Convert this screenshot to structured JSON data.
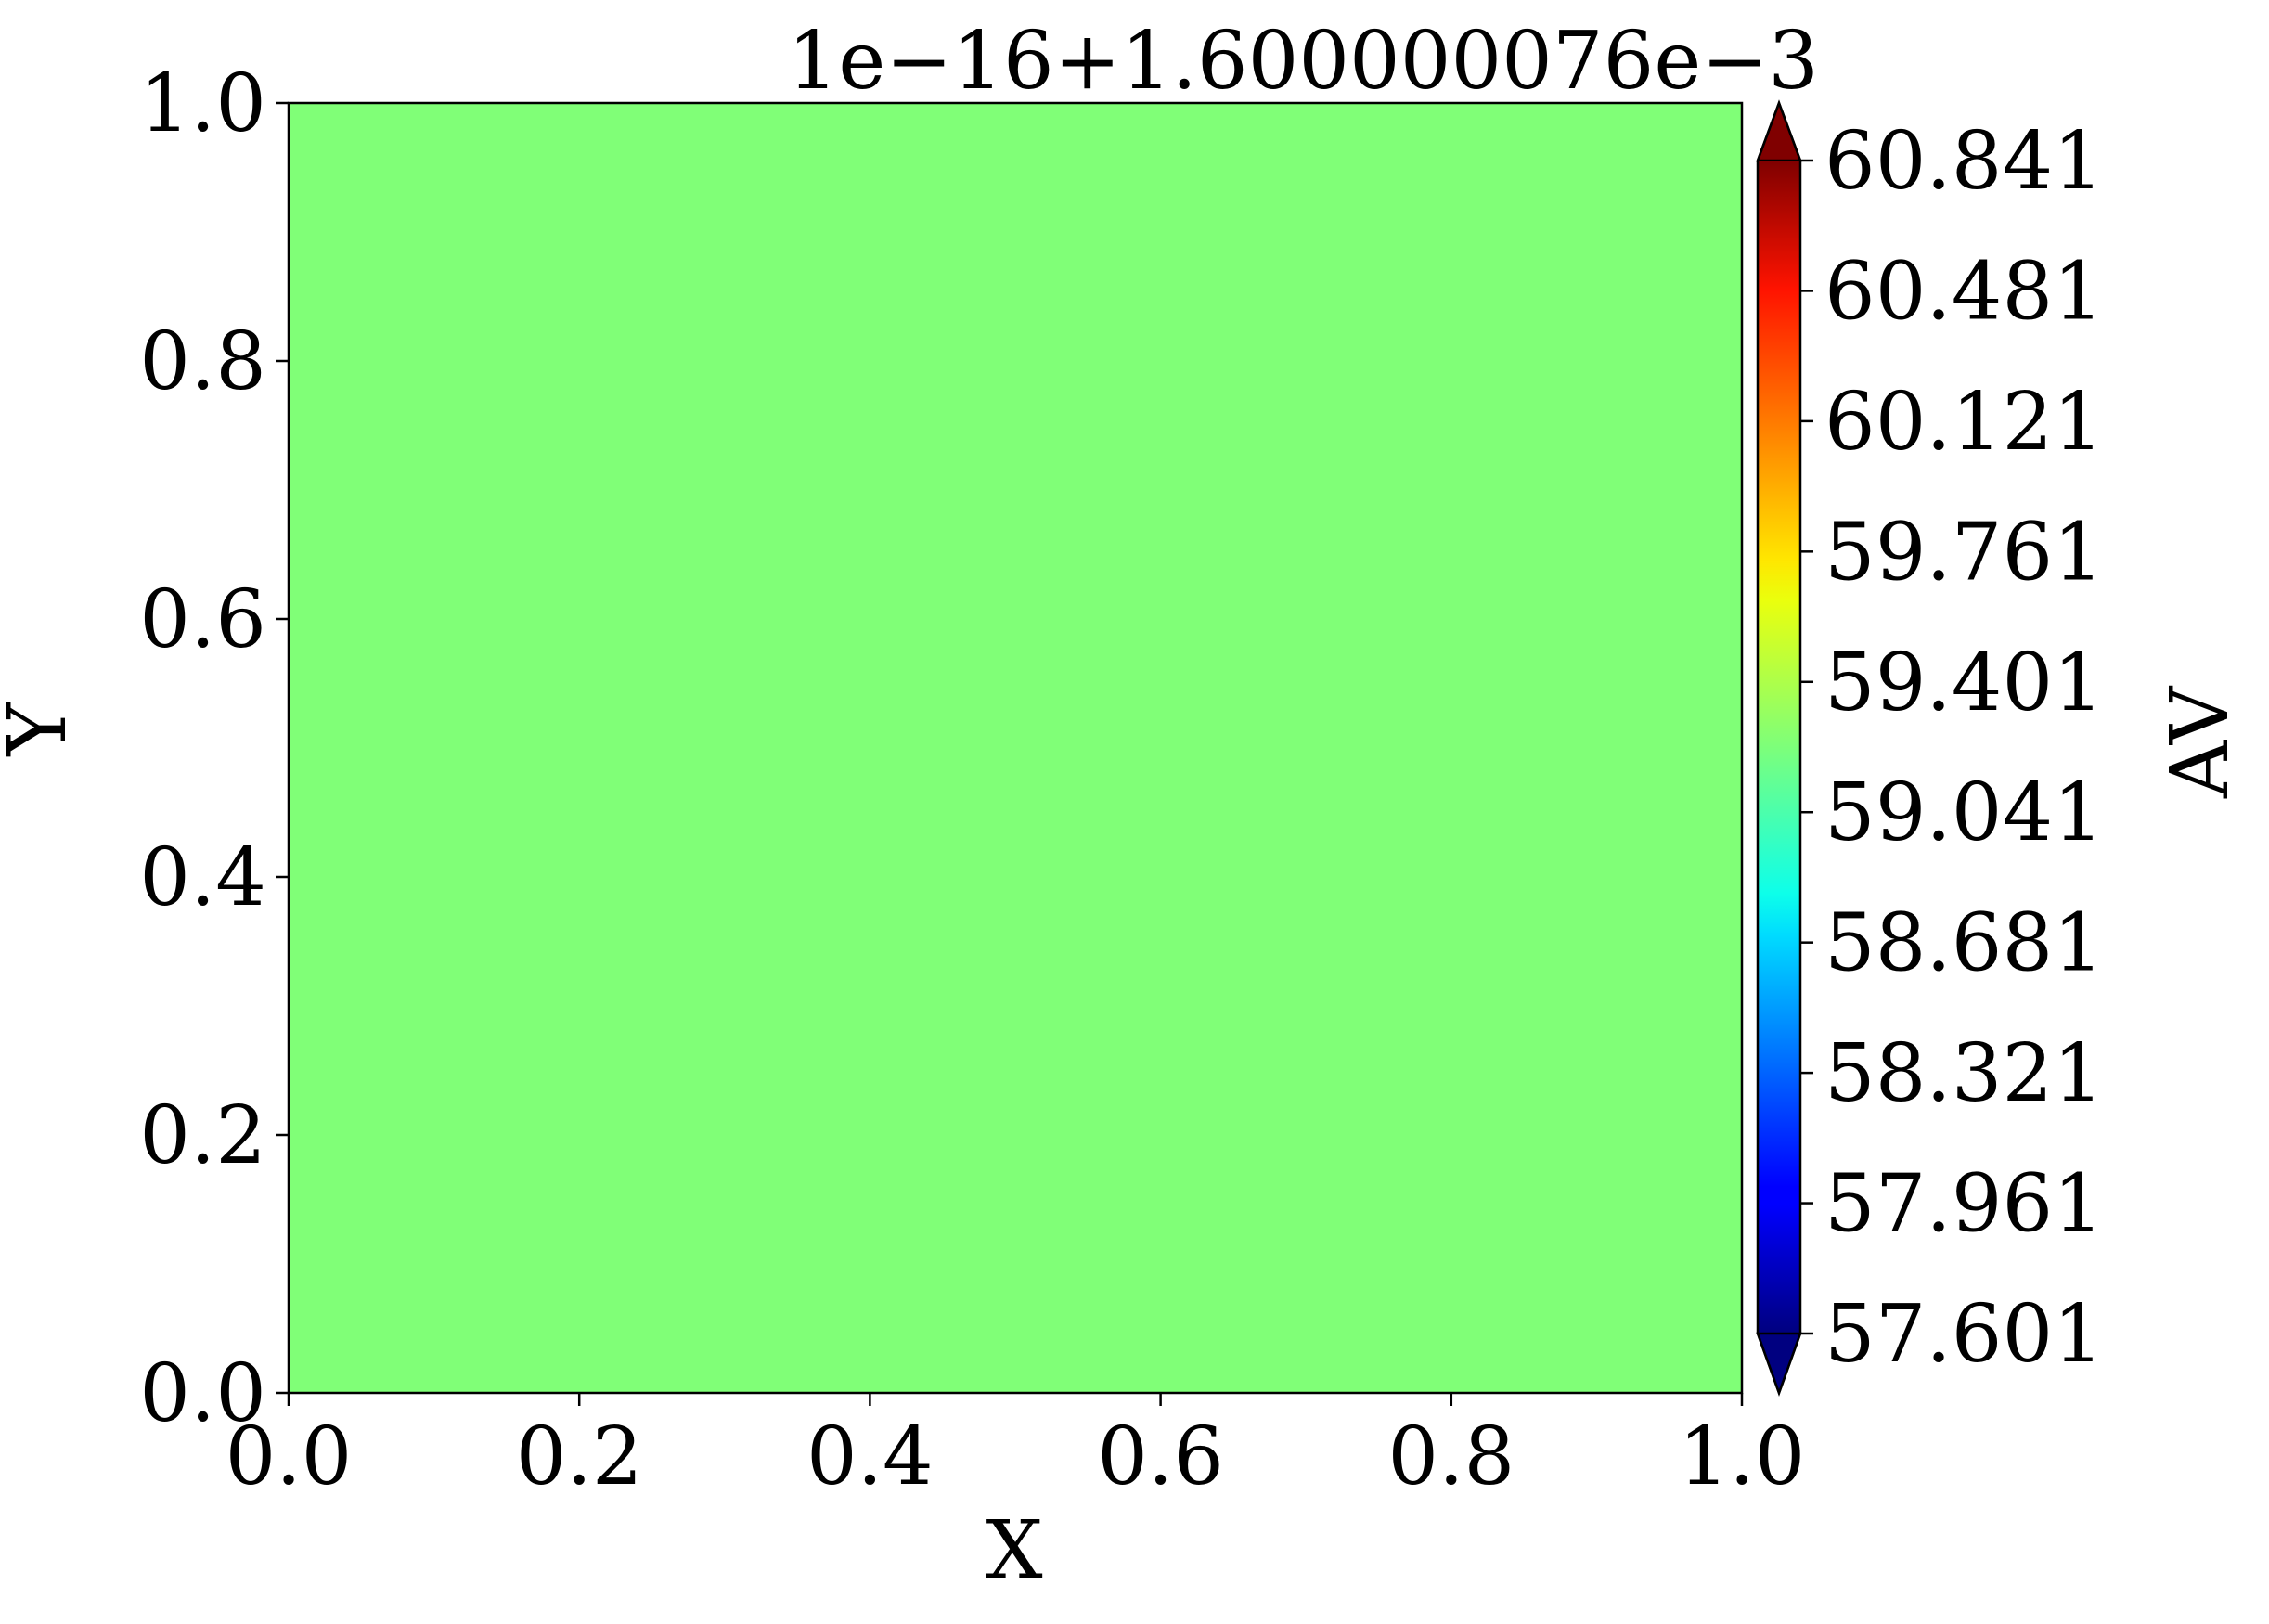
{
  "chart_data": {
    "type": "heatmap",
    "xlabel": "X",
    "ylabel": "Y",
    "xlim": [
      0.0,
      1.0
    ],
    "ylim": [
      0.0,
      1.0
    ],
    "xticks": [
      "0.0",
      "0.2",
      "0.4",
      "0.6",
      "0.8",
      "1.0"
    ],
    "yticks": [
      "0.0",
      "0.2",
      "0.4",
      "0.6",
      "0.8",
      "1.0"
    ],
    "offset_text": "1e−16+1.600000076e−3",
    "field_value": 59.221,
    "field_color": "#80ff77",
    "grid": false,
    "colorbar": {
      "label": "AV",
      "colormap": "jet",
      "extend": "both",
      "min": 57.601,
      "max": 60.841,
      "ticks": [
        "57.601",
        "57.961",
        "58.321",
        "58.681",
        "59.041",
        "59.401",
        "59.761",
        "60.121",
        "60.481",
        "60.841"
      ],
      "under_color": "#000080",
      "over_color": "#800000"
    }
  }
}
